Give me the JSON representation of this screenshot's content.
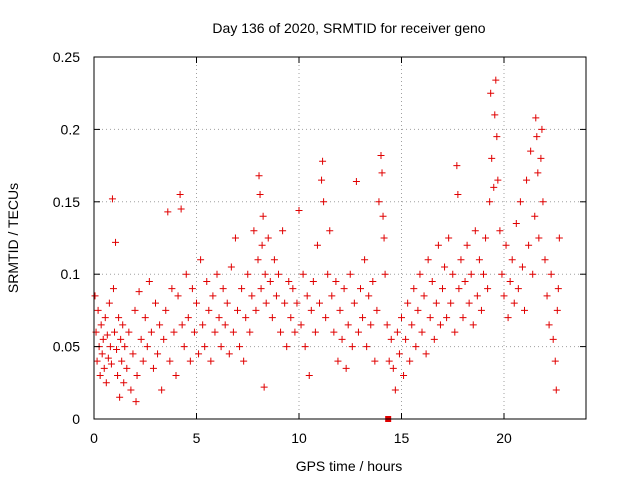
{
  "chart_data": {
    "type": "scatter",
    "title": "Day 136 of 2020, SRMTID for receiver geno",
    "xlabel": "GPS time / hours",
    "ylabel": "SRMTID / TECUs",
    "xlim": [
      0,
      24
    ],
    "ylim": [
      0,
      0.25
    ],
    "x_ticks": [
      0,
      5,
      10,
      15,
      20
    ],
    "y_ticks": [
      0,
      0.05,
      0.1,
      0.15,
      0.2,
      0.25
    ],
    "x_tick_labels": [
      "0",
      "5",
      "10",
      "15",
      "20"
    ],
    "y_tick_labels": [
      "0",
      "0.05",
      "0.1",
      "0.15",
      "0.2",
      "0.25"
    ],
    "grid": true,
    "series_color": "#e00000",
    "marker": "plus",
    "extra_marker": {
      "x": 14.35,
      "y": 0.0,
      "shape": "square"
    },
    "series": [
      {
        "name": "SRMTID",
        "points": [
          [
            0.05,
            0.085
          ],
          [
            0.1,
            0.06
          ],
          [
            0.15,
            0.04
          ],
          [
            0.2,
            0.075
          ],
          [
            0.25,
            0.05
          ],
          [
            0.3,
            0.03
          ],
          [
            0.35,
            0.065
          ],
          [
            0.4,
            0.045
          ],
          [
            0.45,
            0.055
          ],
          [
            0.5,
            0.035
          ],
          [
            0.55,
            0.07
          ],
          [
            0.6,
            0.025
          ],
          [
            0.65,
            0.058
          ],
          [
            0.7,
            0.042
          ],
          [
            0.75,
            0.08
          ],
          [
            0.8,
            0.05
          ],
          [
            0.85,
            0.038
          ],
          [
            0.9,
            0.152
          ],
          [
            0.95,
            0.09
          ],
          [
            1.0,
            0.06
          ],
          [
            1.05,
            0.122
          ],
          [
            1.1,
            0.048
          ],
          [
            1.15,
            0.03
          ],
          [
            1.2,
            0.07
          ],
          [
            1.25,
            0.015
          ],
          [
            1.3,
            0.055
          ],
          [
            1.35,
            0.04
          ],
          [
            1.4,
            0.065
          ],
          [
            1.45,
            0.025
          ],
          [
            1.5,
            0.05
          ],
          [
            1.6,
            0.035
          ],
          [
            1.7,
            0.06
          ],
          [
            1.8,
            0.02
          ],
          [
            1.9,
            0.045
          ],
          [
            2.0,
            0.075
          ],
          [
            2.05,
            0.012
          ],
          [
            2.1,
            0.03
          ],
          [
            2.2,
            0.088
          ],
          [
            2.3,
            0.055
          ],
          [
            2.4,
            0.04
          ],
          [
            2.5,
            0.07
          ],
          [
            2.6,
            0.05
          ],
          [
            2.7,
            0.095
          ],
          [
            2.8,
            0.06
          ],
          [
            2.9,
            0.035
          ],
          [
            3.0,
            0.08
          ],
          [
            3.1,
            0.045
          ],
          [
            3.2,
            0.065
          ],
          [
            3.3,
            0.02
          ],
          [
            3.4,
            0.055
          ],
          [
            3.5,
            0.075
          ],
          [
            3.6,
            0.143
          ],
          [
            3.7,
            0.04
          ],
          [
            3.8,
            0.09
          ],
          [
            3.9,
            0.06
          ],
          [
            4.0,
            0.03
          ],
          [
            4.1,
            0.085
          ],
          [
            4.2,
            0.155
          ],
          [
            4.25,
            0.145
          ],
          [
            4.3,
            0.065
          ],
          [
            4.4,
            0.05
          ],
          [
            4.5,
            0.1
          ],
          [
            4.6,
            0.07
          ],
          [
            4.7,
            0.04
          ],
          [
            4.8,
            0.09
          ],
          [
            4.9,
            0.06
          ],
          [
            5.0,
            0.08
          ],
          [
            5.1,
            0.045
          ],
          [
            5.2,
            0.11
          ],
          [
            5.3,
            0.065
          ],
          [
            5.4,
            0.05
          ],
          [
            5.5,
            0.095
          ],
          [
            5.6,
            0.075
          ],
          [
            5.7,
            0.04
          ],
          [
            5.8,
            0.085
          ],
          [
            5.9,
            0.06
          ],
          [
            6.0,
            0.1
          ],
          [
            6.1,
            0.07
          ],
          [
            6.2,
            0.05
          ],
          [
            6.3,
            0.09
          ],
          [
            6.4,
            0.065
          ],
          [
            6.5,
            0.08
          ],
          [
            6.6,
            0.045
          ],
          [
            6.7,
            0.105
          ],
          [
            6.8,
            0.06
          ],
          [
            6.9,
            0.125
          ],
          [
            7.0,
            0.075
          ],
          [
            7.1,
            0.05
          ],
          [
            7.2,
            0.09
          ],
          [
            7.3,
            0.04
          ],
          [
            7.4,
            0.07
          ],
          [
            7.5,
            0.1
          ],
          [
            7.6,
            0.06
          ],
          [
            7.7,
            0.085
          ],
          [
            7.8,
            0.13
          ],
          [
            7.9,
            0.075
          ],
          [
            8.0,
            0.11
          ],
          [
            8.05,
            0.168
          ],
          [
            8.1,
            0.155
          ],
          [
            8.15,
            0.09
          ],
          [
            8.2,
            0.12
          ],
          [
            8.25,
            0.14
          ],
          [
            8.3,
            0.022
          ],
          [
            8.35,
            0.1
          ],
          [
            8.4,
            0.08
          ],
          [
            8.5,
            0.125
          ],
          [
            8.6,
            0.095
          ],
          [
            8.7,
            0.07
          ],
          [
            8.8,
            0.11
          ],
          [
            8.9,
            0.085
          ],
          [
            9.0,
            0.1
          ],
          [
            9.1,
            0.06
          ],
          [
            9.2,
            0.13
          ],
          [
            9.3,
            0.08
          ],
          [
            9.4,
            0.05
          ],
          [
            9.5,
            0.095
          ],
          [
            9.6,
            0.07
          ],
          [
            9.7,
            0.09
          ],
          [
            9.8,
            0.06
          ],
          [
            9.9,
            0.08
          ],
          [
            10.0,
            0.144
          ],
          [
            10.1,
            0.065
          ],
          [
            10.2,
            0.1
          ],
          [
            10.3,
            0.05
          ],
          [
            10.4,
            0.085
          ],
          [
            10.5,
            0.03
          ],
          [
            10.6,
            0.075
          ],
          [
            10.7,
            0.095
          ],
          [
            10.8,
            0.06
          ],
          [
            10.9,
            0.12
          ],
          [
            11.0,
            0.08
          ],
          [
            11.1,
            0.165
          ],
          [
            11.15,
            0.178
          ],
          [
            11.2,
            0.15
          ],
          [
            11.3,
            0.07
          ],
          [
            11.4,
            0.1
          ],
          [
            11.5,
            0.13
          ],
          [
            11.6,
            0.085
          ],
          [
            11.7,
            0.06
          ],
          [
            11.8,
            0.095
          ],
          [
            11.9,
            0.04
          ],
          [
            12.0,
            0.075
          ],
          [
            12.1,
            0.055
          ],
          [
            12.2,
            0.09
          ],
          [
            12.3,
            0.035
          ],
          [
            12.4,
            0.065
          ],
          [
            12.5,
            0.1
          ],
          [
            12.6,
            0.05
          ],
          [
            12.7,
            0.08
          ],
          [
            12.8,
            0.164
          ],
          [
            12.9,
            0.06
          ],
          [
            13.0,
            0.09
          ],
          [
            13.1,
            0.07
          ],
          [
            13.2,
            0.11
          ],
          [
            13.3,
            0.05
          ],
          [
            13.4,
            0.085
          ],
          [
            13.5,
            0.065
          ],
          [
            13.6,
            0.095
          ],
          [
            13.7,
            0.04
          ],
          [
            13.8,
            0.075
          ],
          [
            13.9,
            0.15
          ],
          [
            14.0,
            0.182
          ],
          [
            14.05,
            0.17
          ],
          [
            14.1,
            0.14
          ],
          [
            14.15,
            0.125
          ],
          [
            14.2,
            0.1
          ],
          [
            14.3,
            0.065
          ],
          [
            14.4,
            0.04
          ],
          [
            14.5,
            0.055
          ],
          [
            14.6,
            0.035
          ],
          [
            14.7,
            0.02
          ],
          [
            14.8,
            0.06
          ],
          [
            14.9,
            0.045
          ],
          [
            15.0,
            0.07
          ],
          [
            15.1,
            0.03
          ],
          [
            15.2,
            0.055
          ],
          [
            15.3,
            0.08
          ],
          [
            15.4,
            0.04
          ],
          [
            15.5,
            0.065
          ],
          [
            15.6,
            0.09
          ],
          [
            15.7,
            0.05
          ],
          [
            15.8,
            0.075
          ],
          [
            15.9,
            0.1
          ],
          [
            16.0,
            0.06
          ],
          [
            16.1,
            0.085
          ],
          [
            16.2,
            0.045
          ],
          [
            16.3,
            0.11
          ],
          [
            16.4,
            0.07
          ],
          [
            16.5,
            0.095
          ],
          [
            16.6,
            0.055
          ],
          [
            16.7,
            0.08
          ],
          [
            16.8,
            0.12
          ],
          [
            16.9,
            0.065
          ],
          [
            17.0,
            0.09
          ],
          [
            17.1,
            0.105
          ],
          [
            17.2,
            0.07
          ],
          [
            17.3,
            0.125
          ],
          [
            17.4,
            0.08
          ],
          [
            17.5,
            0.1
          ],
          [
            17.6,
            0.06
          ],
          [
            17.7,
            0.175
          ],
          [
            17.75,
            0.155
          ],
          [
            17.8,
            0.09
          ],
          [
            17.9,
            0.11
          ],
          [
            18.0,
            0.07
          ],
          [
            18.1,
            0.095
          ],
          [
            18.2,
            0.12
          ],
          [
            18.3,
            0.08
          ],
          [
            18.4,
            0.1
          ],
          [
            18.5,
            0.065
          ],
          [
            18.6,
            0.13
          ],
          [
            18.7,
            0.085
          ],
          [
            18.8,
            0.11
          ],
          [
            18.9,
            0.075
          ],
          [
            19.0,
            0.1
          ],
          [
            19.1,
            0.125
          ],
          [
            19.2,
            0.09
          ],
          [
            19.3,
            0.15
          ],
          [
            19.35,
            0.225
          ],
          [
            19.4,
            0.18
          ],
          [
            19.5,
            0.16
          ],
          [
            19.55,
            0.21
          ],
          [
            19.6,
            0.234
          ],
          [
            19.65,
            0.195
          ],
          [
            19.7,
            0.165
          ],
          [
            19.8,
            0.13
          ],
          [
            19.9,
            0.1
          ],
          [
            20.0,
            0.085
          ],
          [
            20.1,
            0.12
          ],
          [
            20.2,
            0.07
          ],
          [
            20.3,
            0.095
          ],
          [
            20.4,
            0.11
          ],
          [
            20.5,
            0.08
          ],
          [
            20.6,
            0.135
          ],
          [
            20.7,
            0.09
          ],
          [
            20.8,
            0.15
          ],
          [
            20.9,
            0.105
          ],
          [
            21.0,
            0.075
          ],
          [
            21.1,
            0.165
          ],
          [
            21.2,
            0.12
          ],
          [
            21.3,
            0.185
          ],
          [
            21.4,
            0.1
          ],
          [
            21.5,
            0.14
          ],
          [
            21.55,
            0.208
          ],
          [
            21.6,
            0.195
          ],
          [
            21.65,
            0.17
          ],
          [
            21.7,
            0.125
          ],
          [
            21.8,
            0.18
          ],
          [
            21.85,
            0.2
          ],
          [
            21.9,
            0.15
          ],
          [
            22.0,
            0.11
          ],
          [
            22.1,
            0.085
          ],
          [
            22.2,
            0.065
          ],
          [
            22.3,
            0.1
          ],
          [
            22.4,
            0.055
          ],
          [
            22.5,
            0.04
          ],
          [
            22.55,
            0.02
          ],
          [
            22.6,
            0.075
          ],
          [
            22.65,
            0.09
          ],
          [
            22.7,
            0.125
          ]
        ]
      }
    ]
  }
}
